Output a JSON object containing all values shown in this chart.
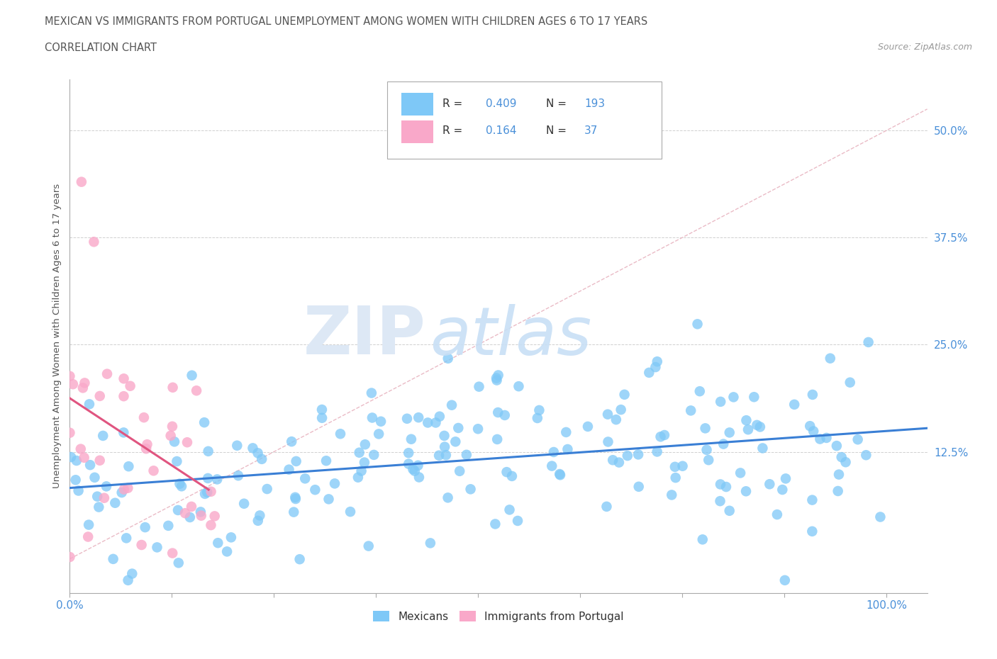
{
  "title": "MEXICAN VS IMMIGRANTS FROM PORTUGAL UNEMPLOYMENT AMONG WOMEN WITH CHILDREN AGES 6 TO 17 YEARS",
  "subtitle": "CORRELATION CHART",
  "source": "Source: ZipAtlas.com",
  "r_mexican": 0.409,
  "n_mexican": 193,
  "r_portugal": 0.164,
  "n_portugal": 37,
  "xlim": [
    0,
    1.05
  ],
  "ylim": [
    -0.04,
    0.56
  ],
  "mexican_color": "#7ec8f7",
  "portugal_color": "#f9a8c9",
  "trend_mexican_color": "#3a7fd5",
  "trend_portugal_color": "#e05580",
  "diagonal_color": "#e8b4c0",
  "grid_color": "#d0d0d0",
  "watermark_zip": "ZIP",
  "watermark_atlas": "atlas",
  "background_color": "#ffffff",
  "title_color": "#555555",
  "label_color": "#4a90d9",
  "legend_r_color": "#333333",
  "legend_val_color": "#4a90d9"
}
